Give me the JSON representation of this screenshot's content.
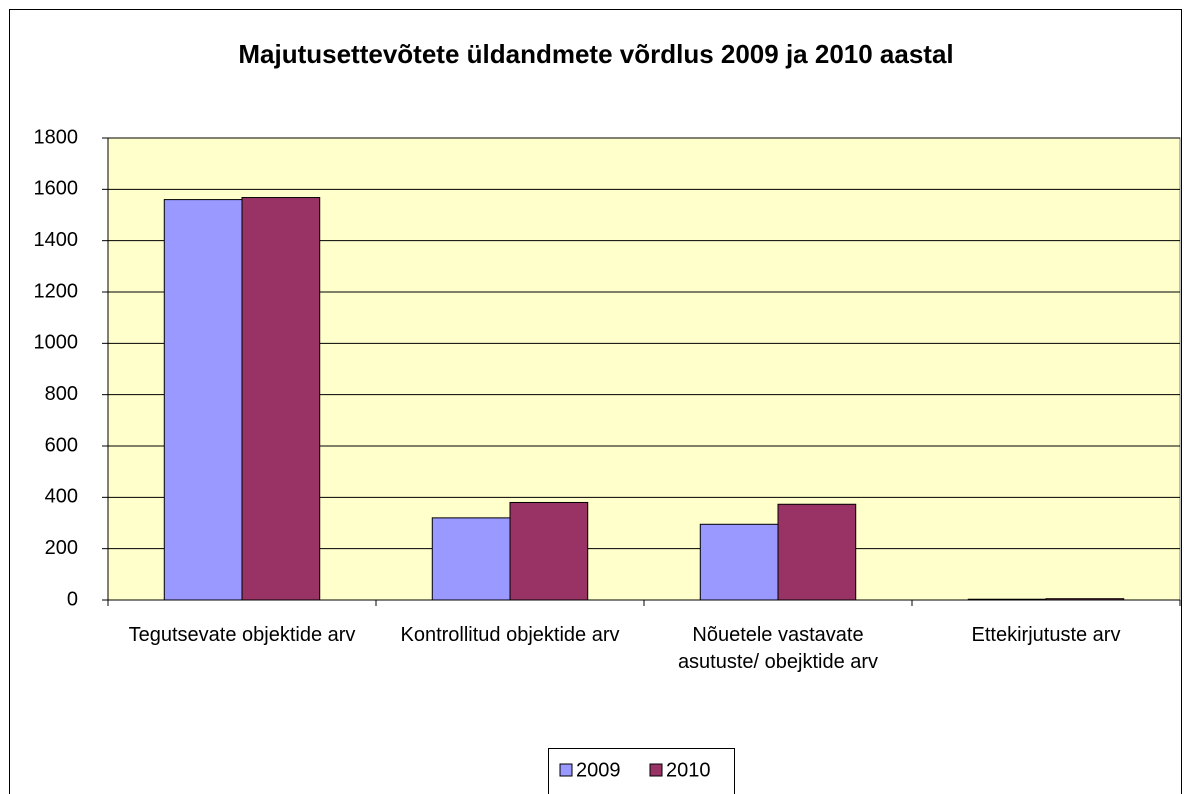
{
  "chart_data": {
    "type": "bar",
    "title": "Majutusettevõtete üldandmete võrdlus 2009 ja 2010 aastal",
    "categories": [
      "Tegutsevate objektide arv",
      "Kontrollitud objektide arv",
      "Nõuetele vastavate asutuste/ obejktide arv",
      "Ettekirjutuste arv"
    ],
    "series": [
      {
        "name": "2009",
        "color": "#9999ff",
        "values": [
          1560,
          320,
          295,
          3
        ]
      },
      {
        "name": "2010",
        "color": "#993366",
        "values": [
          1568,
          380,
          373,
          5
        ]
      }
    ],
    "ylim": [
      0,
      1800
    ],
    "yticks": [
      0,
      200,
      400,
      600,
      800,
      1000,
      1200,
      1400,
      1600,
      1800
    ],
    "grid": true,
    "legend": "bottom"
  }
}
